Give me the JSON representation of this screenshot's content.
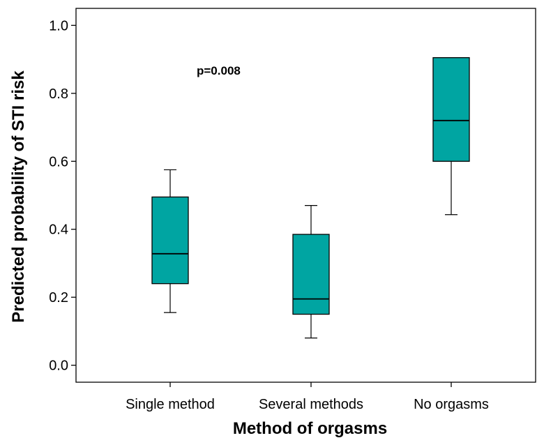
{
  "chart_data": {
    "type": "box",
    "title": "",
    "xlabel": "Method of orgasms",
    "ylabel": "Predicted probability of STI risk",
    "ylim": [
      -0.05,
      1.05
    ],
    "yticks": [
      "0.0",
      "0.2",
      "0.4",
      "0.6",
      "0.8",
      "1.0"
    ],
    "annotation": "p=0.008",
    "grid": false,
    "box_color": "#00A5A2",
    "categories": [
      "Single method",
      "Several methods",
      "No orgasms"
    ],
    "boxes": [
      {
        "category": "Single method",
        "min": 0.155,
        "q1": 0.24,
        "median": 0.328,
        "q3": 0.495,
        "max": 0.575
      },
      {
        "category": "Several methods",
        "min": 0.08,
        "q1": 0.15,
        "median": 0.195,
        "q3": 0.385,
        "max": 0.47
      },
      {
        "category": "No orgasms",
        "min": 0.443,
        "q1": 0.6,
        "median": 0.72,
        "q3": 0.905,
        "max": 0.905
      }
    ]
  }
}
